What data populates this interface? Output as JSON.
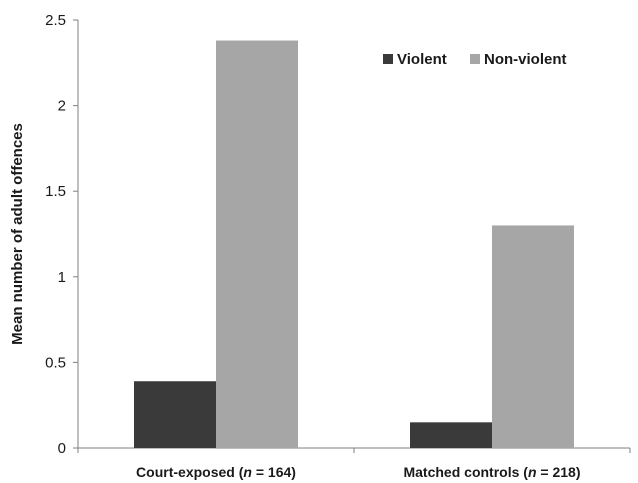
{
  "chart_data": {
    "type": "bar",
    "categories": [
      {
        "prefix": "Court-exposed (",
        "n_italic": "n",
        "suffix": " = 164)"
      },
      {
        "prefix": "Matched controls (",
        "n_italic": "n",
        "suffix": " = 218)"
      }
    ],
    "series": [
      {
        "name": "Violent",
        "values": [
          0.39,
          0.15
        ],
        "color": "#3a3a3a"
      },
      {
        "name": "Non-violent",
        "values": [
          2.38,
          1.3
        ],
        "color": "#a6a6a6"
      }
    ],
    "xlabel": "",
    "ylabel": "Mean number of adult offences",
    "ylim": [
      0,
      2.5
    ],
    "yticks": [
      "0",
      "0.5",
      "1",
      "1.5",
      "2",
      "2.5"
    ],
    "ytick_values": [
      0,
      0.5,
      1,
      1.5,
      2,
      2.5
    ],
    "grid": false,
    "legend_position": "top-right"
  }
}
